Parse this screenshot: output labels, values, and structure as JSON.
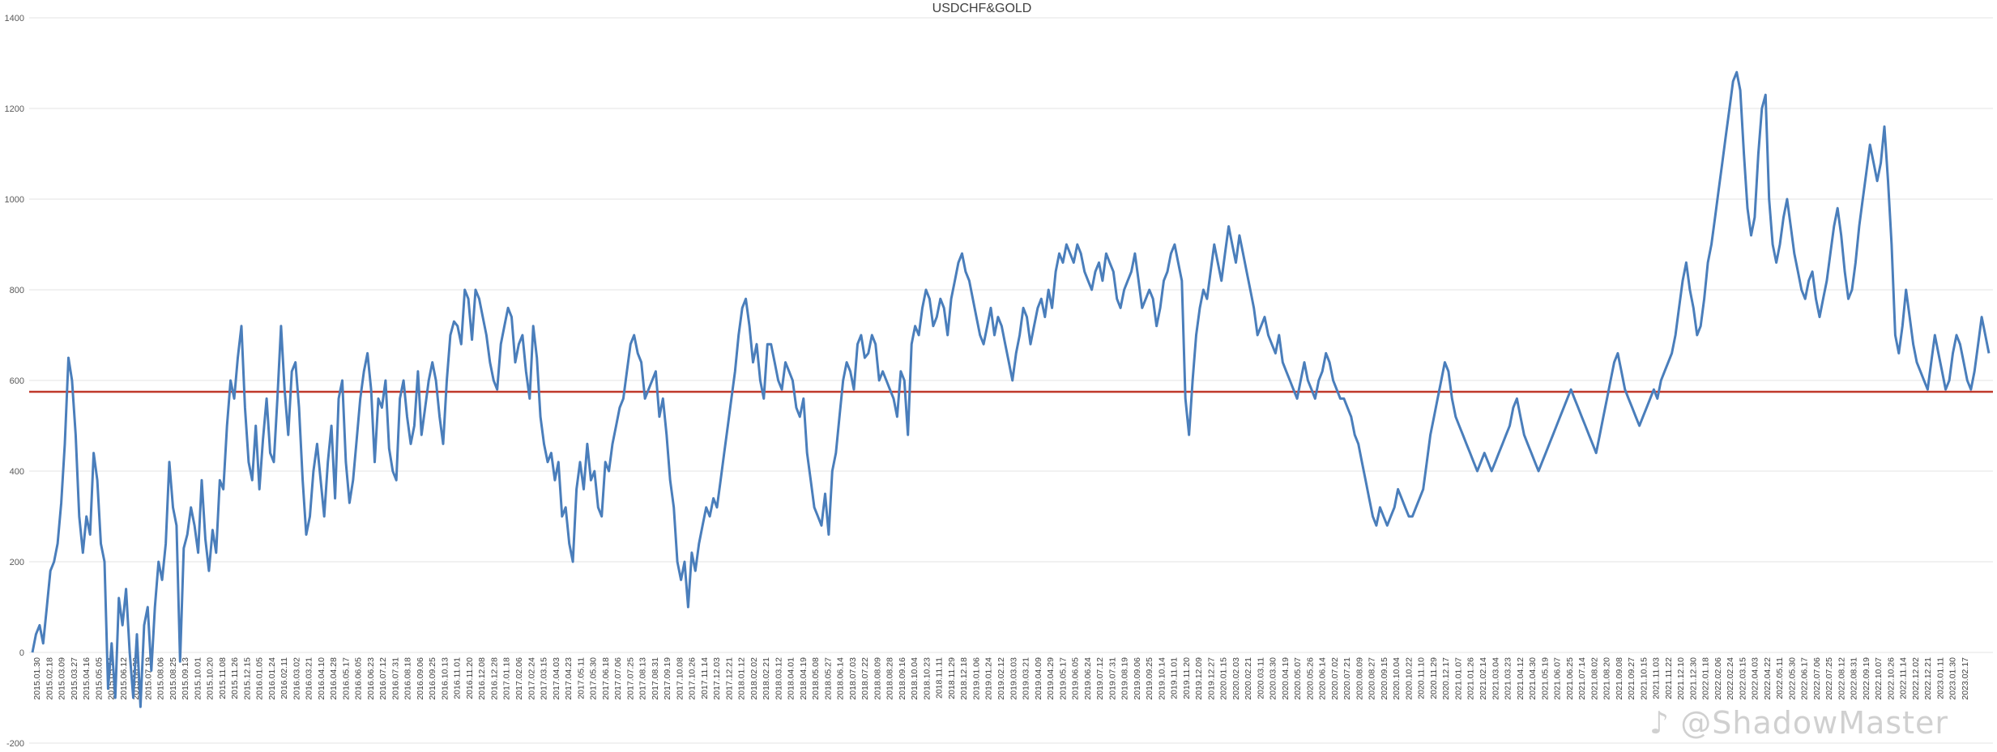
{
  "chart_data": {
    "type": "line",
    "title": "USDCHF&GOLD",
    "xlabel": "",
    "ylabel": "",
    "ylim": [
      -200,
      1400
    ],
    "yticks": [
      -200,
      0,
      200,
      400,
      600,
      800,
      1000,
      1200,
      1400
    ],
    "grid": true,
    "legend": "none",
    "x_tick_labels": [
      "2015.01.30",
      "2015.02.18",
      "2015.03.09",
      "2015.03.27",
      "2015.04.16",
      "2015.05.05",
      "2015.05.24",
      "2015.06.12",
      "2015.06.30",
      "2015.07.19",
      "2015.08.06",
      "2015.08.25",
      "2015.09.13",
      "2015.10.01",
      "2015.10.20",
      "2015.11.08",
      "2015.11.26",
      "2015.12.15",
      "2016.01.05",
      "2016.01.24",
      "2016.02.11",
      "2016.03.02",
      "2016.03.21",
      "2016.04.10",
      "2016.04.28",
      "2016.05.17",
      "2016.06.05",
      "2016.06.23",
      "2016.07.12",
      "2016.07.31",
      "2016.08.18",
      "2016.09.06",
      "2016.09.25",
      "2016.10.13",
      "2016.11.01",
      "2016.11.20",
      "2016.12.08",
      "2016.12.28",
      "2017.01.18",
      "2017.02.06",
      "2017.02.24",
      "2017.03.15",
      "2017.04.03",
      "2017.04.23",
      "2017.05.11",
      "2017.05.30",
      "2017.06.18",
      "2017.07.06",
      "2017.07.25",
      "2017.08.13",
      "2017.08.31",
      "2017.09.19",
      "2017.10.08",
      "2017.10.26",
      "2017.11.14",
      "2017.12.03",
      "2017.12.21",
      "2018.01.12",
      "2018.02.02",
      "2018.02.21",
      "2018.03.12",
      "2018.04.01",
      "2018.04.19",
      "2018.05.08",
      "2018.05.27",
      "2018.06.14",
      "2018.07.03",
      "2018.07.22",
      "2018.08.09",
      "2018.08.28",
      "2018.09.16",
      "2018.10.04",
      "2018.10.23",
      "2018.11.11",
      "2018.11.29",
      "2018.12.18",
      "2019.01.06",
      "2019.01.24",
      "2019.02.12",
      "2019.03.03",
      "2019.03.21",
      "2019.04.09",
      "2019.04.29",
      "2019.05.17",
      "2019.06.05",
      "2019.06.24",
      "2019.07.12",
      "2019.07.31",
      "2019.08.19",
      "2019.09.06",
      "2019.09.25",
      "2019.10.14",
      "2019.11.01",
      "2019.11.20",
      "2019.12.09",
      "2019.12.27",
      "2020.01.15",
      "2020.02.03",
      "2020.02.21",
      "2020.03.11",
      "2020.03.30",
      "2020.04.19",
      "2020.05.07",
      "2020.05.26",
      "2020.06.14",
      "2020.07.02",
      "2020.07.21",
      "2020.08.09",
      "2020.08.27",
      "2020.09.15",
      "2020.10.04",
      "2020.10.22",
      "2020.11.10",
      "2020.11.29",
      "2020.12.17",
      "2021.01.07",
      "2021.01.26",
      "2021.02.14",
      "2021.03.04",
      "2021.03.23",
      "2021.04.12",
      "2021.04.30",
      "2021.05.19",
      "2021.06.07",
      "2021.06.25",
      "2021.07.14",
      "2021.08.02",
      "2021.08.20",
      "2021.09.08",
      "2021.09.27",
      "2021.10.15",
      "2021.11.03",
      "2021.11.22",
      "2021.12.10",
      "2021.12.30",
      "2022.01.18",
      "2022.02.06",
      "2022.02.24",
      "2022.03.15",
      "2022.04.03",
      "2022.04.22",
      "2022.05.11",
      "2022.05.30",
      "2022.06.17",
      "2022.07.06",
      "2022.07.25",
      "2022.08.12",
      "2022.08.31",
      "2022.09.19",
      "2022.10.07",
      "2022.10.26",
      "2022.11.14",
      "2022.12.02",
      "2022.12.21",
      "2023.01.11",
      "2023.01.30",
      "2023.02.17"
    ],
    "series": [
      {
        "values": [
          0,
          40,
          60,
          20,
          100,
          180,
          200,
          240,
          330,
          460,
          650,
          600,
          480,
          300,
          220,
          300,
          260,
          440,
          380,
          240,
          200,
          -80,
          20,
          -100,
          120,
          60,
          140,
          0,
          -100,
          40,
          -120,
          60,
          100,
          -40,
          100,
          200,
          160,
          240,
          420,
          320,
          280,
          -20,
          230,
          260,
          320,
          280,
          220,
          380,
          250,
          180,
          270,
          220,
          380,
          360,
          500,
          600,
          560,
          650,
          720,
          540,
          420,
          380,
          500,
          360,
          470,
          560,
          440,
          420,
          560,
          720,
          580,
          480,
          620,
          640,
          540,
          380,
          260,
          300,
          400,
          460,
          380,
          300,
          420,
          500,
          340,
          560,
          600,
          420,
          330,
          380,
          470,
          560,
          620,
          660,
          580,
          420,
          560,
          540,
          600,
          450,
          400,
          380,
          560,
          600,
          520,
          460,
          500,
          620,
          480,
          540,
          600,
          640,
          600,
          520,
          460,
          600,
          700,
          730,
          720,
          680,
          800,
          780,
          690,
          800,
          780,
          740,
          700,
          640,
          600,
          580,
          680,
          720,
          760,
          740,
          640,
          680,
          700,
          620,
          560,
          720,
          650,
          520,
          460,
          420,
          440,
          380,
          420,
          300,
          320,
          240,
          200,
          360,
          420,
          360,
          460,
          380,
          400,
          320,
          300,
          420,
          400,
          460,
          500,
          540,
          560,
          620,
          680,
          700,
          660,
          640,
          560,
          580,
          600,
          620,
          520,
          560,
          480,
          380,
          320,
          200,
          160,
          200,
          100,
          220,
          180,
          240,
          280,
          320,
          300,
          340,
          320,
          380,
          440,
          500,
          560,
          620,
          700,
          760,
          780,
          720,
          640,
          680,
          600,
          560,
          680,
          680,
          640,
          600,
          580,
          640,
          620,
          600,
          540,
          520,
          560,
          440,
          380,
          320,
          300,
          280,
          350,
          260,
          400,
          440,
          520,
          600,
          640,
          620,
          580,
          680,
          700,
          650,
          660,
          700,
          680,
          600,
          620,
          600,
          580,
          560,
          520,
          620,
          600,
          480,
          680,
          720,
          700,
          760,
          800,
          780,
          720,
          740,
          780,
          760,
          700,
          780,
          820,
          860,
          880,
          840,
          820,
          780,
          740,
          700,
          680,
          720,
          760,
          700,
          740,
          720,
          680,
          640,
          600,
          660,
          700,
          760,
          740,
          680,
          720,
          760,
          780,
          740,
          800,
          760,
          840,
          880,
          860,
          900,
          880,
          860,
          900,
          880,
          840,
          820,
          800,
          840,
          860,
          820,
          880,
          860,
          840,
          780,
          760,
          800,
          820,
          840,
          880,
          820,
          760,
          780,
          800,
          780,
          720,
          760,
          820,
          840,
          880,
          900,
          860,
          820,
          560,
          480,
          600,
          700,
          760,
          800,
          780,
          840,
          900,
          860,
          820,
          880,
          940,
          900,
          860,
          920,
          880,
          840,
          800,
          760,
          700,
          720,
          740,
          700,
          680,
          660,
          700,
          640,
          620,
          600,
          580,
          560,
          600,
          640,
          600,
          580,
          560,
          600,
          620,
          660,
          640,
          600,
          580,
          560,
          560,
          540,
          520,
          480,
          460,
          420,
          380,
          340,
          300,
          280,
          320,
          300,
          280,
          300,
          320,
          360,
          340,
          320,
          300,
          300,
          320,
          340,
          360,
          420,
          480,
          520,
          560,
          600,
          640,
          620,
          560,
          520,
          500,
          480,
          460,
          440,
          420,
          400,
          420,
          440,
          420,
          400,
          420,
          440,
          460,
          480,
          500,
          540,
          560,
          520,
          480,
          460,
          440,
          420,
          400,
          420,
          440,
          460,
          480,
          500,
          520,
          540,
          560,
          580,
          560,
          540,
          520,
          500,
          480,
          460,
          440,
          480,
          520,
          560,
          600,
          640,
          660,
          620,
          580,
          560,
          540,
          520,
          500,
          520,
          540,
          560,
          580,
          560,
          600,
          620,
          640,
          660,
          700,
          760,
          820,
          860,
          800,
          760,
          700,
          720,
          780,
          860,
          900,
          960,
          1020,
          1080,
          1140,
          1200,
          1260,
          1280,
          1240,
          1100,
          980,
          920,
          960,
          1100,
          1200,
          1230,
          1000,
          900,
          860,
          900,
          960,
          1000,
          940,
          880,
          840,
          800,
          780,
          820,
          840,
          780,
          740,
          780,
          820,
          880,
          940,
          980,
          920,
          840,
          780,
          800,
          860,
          940,
          1000,
          1060,
          1120,
          1080,
          1040,
          1080,
          1160,
          1040,
          900,
          700,
          660,
          720,
          800,
          740,
          680,
          640,
          620,
          600,
          580,
          640,
          700,
          660,
          620,
          580,
          600,
          660,
          700,
          680,
          640,
          600,
          580,
          620,
          680,
          740,
          700,
          660
        ]
      }
    ],
    "reference_line": {
      "value": 575,
      "color": "#c0392b"
    },
    "colors": {
      "series": "#4a7ebb",
      "reference": "#c0392b",
      "grid": "#e3e3e3"
    }
  },
  "watermark": {
    "icon": "tiktok-icon",
    "text": "@ShadowMaster"
  }
}
